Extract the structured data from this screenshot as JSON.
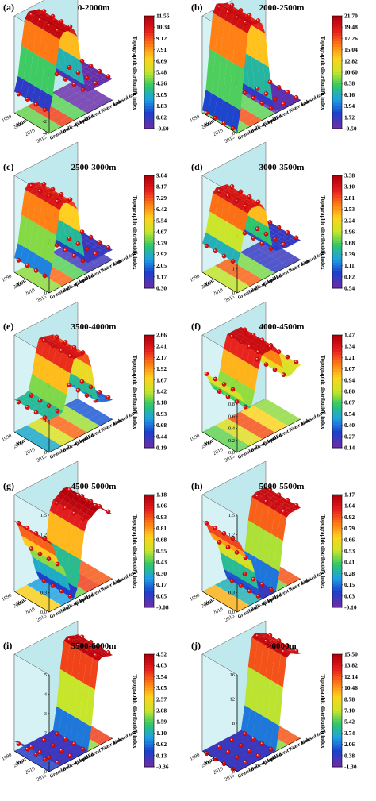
{
  "figure": {
    "y_axis_label": "Topographic distribution index",
    "year_axis_label": "Year",
    "year_ticks": [
      "1990",
      "2005",
      "2010",
      "2015"
    ],
    "categories": [
      "Grassland",
      "Built-up land",
      "Cropland",
      "Forest",
      "Water body",
      "Unused land"
    ]
  },
  "colorscale": [
    "#6a2fa8",
    "#1d3fcc",
    "#1ea0e6",
    "#2dc86a",
    "#c8e62a",
    "#ffd21e",
    "#ff7a14",
    "#e61e1e",
    "#b4000a"
  ],
  "chart_data": [
    {
      "type": "surface3d",
      "label": "(a)",
      "title": "0-2000m",
      "zlim": [
        -4,
        12
      ],
      "z_ticks": [
        "-4",
        "-2",
        "0",
        "2",
        "4",
        "6",
        "8",
        "10",
        "12"
      ],
      "colorbar": [
        "11.55",
        "10.34",
        "9.12",
        "7.91",
        "6.69",
        "5.48",
        "4.26",
        "3.05",
        "1.83",
        "0.62",
        "-0.60"
      ],
      "profile": [
        -0.5,
        11.5,
        11.0,
        -0.5,
        -0.5,
        -0.5
      ]
    },
    {
      "type": "surface3d",
      "label": "(b)",
      "title": "2000-2500m",
      "zlim": [
        0,
        20
      ],
      "z_ticks": [
        "0",
        "5",
        "10",
        "15",
        "20"
      ],
      "colorbar": [
        "21.70",
        "19.48",
        "17.26",
        "15.04",
        "12.82",
        "10.60",
        "8.38",
        "6.16",
        "3.94",
        "1.72",
        "-0.50"
      ],
      "profile": [
        0.5,
        21.0,
        20.0,
        0.5,
        0.0,
        0.0
      ]
    },
    {
      "type": "surface3d",
      "label": "(c)",
      "title": "2500-3000m",
      "zlim": [
        0,
        10
      ],
      "z_ticks": [
        "0",
        "2",
        "4",
        "6",
        "8",
        "10"
      ],
      "colorbar": [
        "9.04",
        "8.17",
        "7.29",
        "6.42",
        "5.54",
        "4.67",
        "3.79",
        "2.92",
        "2.05",
        "1.17",
        "0.30"
      ],
      "profile": [
        1.5,
        8.5,
        8.0,
        1.0,
        1.0,
        1.0
      ]
    },
    {
      "type": "surface3d",
      "label": "(d)",
      "title": "3000-3500m",
      "zlim": [
        0,
        4
      ],
      "z_ticks": [
        "0",
        "1",
        "2",
        "3",
        "4"
      ],
      "colorbar": [
        "3.38",
        "3.10",
        "2.81",
        "2.53",
        "2.24",
        "1.96",
        "1.68",
        "1.39",
        "1.11",
        "0.82",
        "0.54"
      ],
      "profile": [
        1.2,
        3.2,
        3.1,
        0.9,
        0.8,
        0.8
      ]
    },
    {
      "type": "surface3d",
      "label": "(e)",
      "title": "3500-4000m",
      "zlim": [
        0,
        3
      ],
      "z_ticks": [
        "0",
        "1",
        "2",
        "3"
      ],
      "colorbar": [
        "2.66",
        "2.41",
        "2.17",
        "1.92",
        "1.67",
        "1.42",
        "1.18",
        "0.93",
        "0.68",
        "0.44",
        "0.19"
      ],
      "profile": [
        1.0,
        1.0,
        2.5,
        2.4,
        0.7,
        0.6
      ]
    },
    {
      "type": "surface3d",
      "label": "(f)",
      "title": "4000-4500m",
      "zlim": [
        0,
        1.6
      ],
      "z_ticks": [
        "0.0",
        "0.2",
        "0.4",
        "0.6",
        "0.8",
        "1.0",
        "1.2",
        "1.4",
        "1.6"
      ],
      "colorbar": [
        "1.47",
        "1.34",
        "1.21",
        "1.07",
        "0.94",
        "0.80",
        "0.67",
        "0.54",
        "0.40",
        "0.27",
        "0.14"
      ],
      "profile": [
        1.0,
        0.6,
        1.4,
        1.4,
        0.8,
        0.9
      ]
    },
    {
      "type": "surface3d",
      "label": "(g)",
      "title": "4500-5000m",
      "zlim": [
        0,
        1.5
      ],
      "z_ticks": [
        "0.0",
        "0.3",
        "0.6",
        "0.9",
        "1.2",
        "1.5"
      ],
      "colorbar": [
        "1.18",
        "1.06",
        "0.93",
        "0.81",
        "0.68",
        "0.55",
        "0.43",
        "0.30",
        "0.17",
        "0.05",
        "-0.08"
      ],
      "profile": [
        1.1,
        0.6,
        0.0,
        1.1,
        1.2,
        1.0
      ]
    },
    {
      "type": "surface3d",
      "label": "(h)",
      "title": "5000-5500m",
      "zlim": [
        0,
        1.5
      ],
      "z_ticks": [
        "0.0",
        "0.3",
        "0.6",
        "0.9",
        "1.2",
        "1.5"
      ],
      "colorbar": [
        "1.17",
        "1.04",
        "0.92",
        "0.79",
        "0.66",
        "0.53",
        "0.41",
        "0.28",
        "0.15",
        "0.03",
        "-0.10"
      ],
      "profile": [
        1.1,
        0.7,
        0.0,
        0.0,
        1.1,
        1.1
      ]
    },
    {
      "type": "surface3d",
      "label": "(i)",
      "title": "5500-6000m",
      "zlim": [
        0,
        5
      ],
      "z_ticks": [
        "0",
        "1",
        "2",
        "3",
        "4",
        "5"
      ],
      "colorbar": [
        "4.52",
        "4.03",
        "3.54",
        "3.05",
        "2.57",
        "2.08",
        "1.59",
        "1.10",
        "0.62",
        "0.13",
        "-0.36"
      ],
      "profile": [
        0.5,
        0.0,
        0.0,
        0.0,
        4.5,
        4.3
      ]
    },
    {
      "type": "surface3d",
      "label": "(j)",
      "title": ">6000m",
      "zlim": [
        0,
        16
      ],
      "z_ticks": [
        "0",
        "4",
        "8",
        "12",
        "16"
      ],
      "colorbar": [
        "15.50",
        "13.82",
        "12.14",
        "10.46",
        "8.78",
        "7.10",
        "5.42",
        "3.74",
        "2.06",
        "0.38",
        "-1.30"
      ],
      "profile": [
        0.0,
        0.0,
        0.0,
        0.0,
        15.0,
        14.0
      ]
    }
  ]
}
